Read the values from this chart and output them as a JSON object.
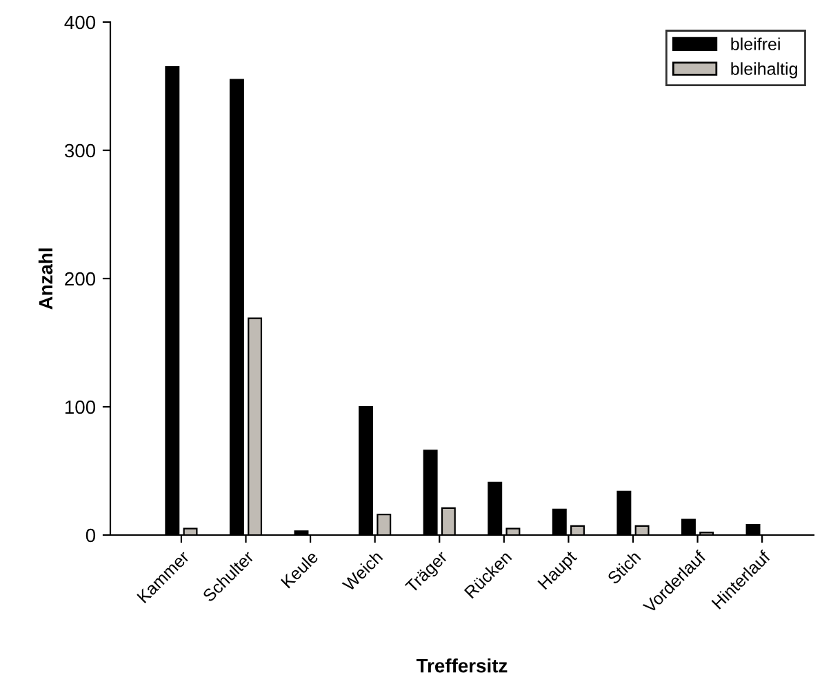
{
  "chart_data": {
    "type": "bar",
    "xlabel": "Treffersitz",
    "ylabel": "Anzahl",
    "categories": [
      "Kammer",
      "Schulter",
      "Keule",
      "Weich",
      "Träger",
      "Rücken",
      "Haupt",
      "Stich",
      "Vorderlauf",
      "Hinterlauf"
    ],
    "series": [
      {
        "name": "bleifrei",
        "color": "#000000",
        "values": [
          365,
          355,
          3,
          100,
          66,
          41,
          20,
          34,
          12,
          8
        ]
      },
      {
        "name": "bleihaltig",
        "color": "#c0bbb4",
        "values": [
          5,
          169,
          null,
          16,
          21,
          5,
          7,
          7,
          2,
          null
        ]
      }
    ],
    "ylim": [
      0,
      400
    ],
    "yticks": [
      0,
      100,
      200,
      300,
      400
    ],
    "grid": false,
    "legend": "top right"
  }
}
